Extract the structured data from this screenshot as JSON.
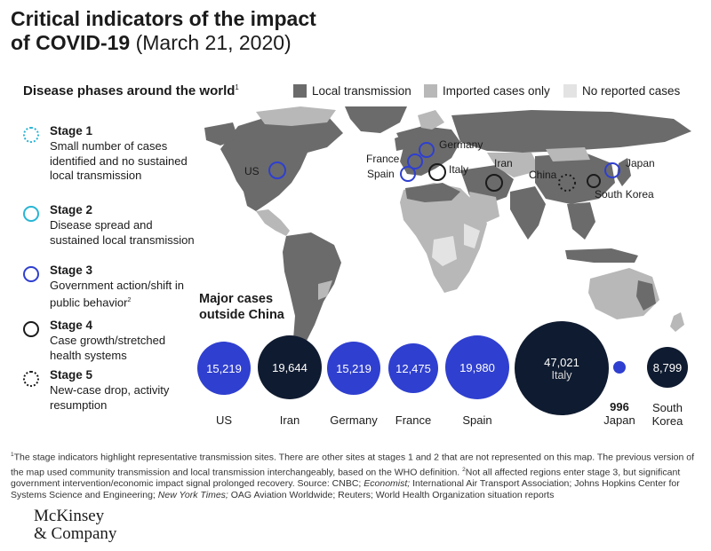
{
  "title": {
    "bold": "Critical indicators of the impact",
    "bold2": "of COVID-19",
    "date": "(March 21, 2020)"
  },
  "section_title": "Disease phases around the world",
  "section_title_sup": "1",
  "legend": [
    {
      "label": "Local transmission",
      "color": "#6b6b6b"
    },
    {
      "label": "Imported cases only",
      "color": "#b8b8b8"
    },
    {
      "label": "No reported cases",
      "color": "#e3e3e3"
    }
  ],
  "stages": [
    {
      "title": "Stage 1",
      "desc": "Small number of cases identified and no sustained local transmission",
      "sup": "",
      "color": "#29b5d4",
      "style": "dotted"
    },
    {
      "title": "Stage 2",
      "desc": "Disease spread and sustained local transmission",
      "sup": "",
      "color": "#29b5d4",
      "style": "solid"
    },
    {
      "title": "Stage 3",
      "desc": "Government action/shift in public behavior",
      "sup": "2",
      "color": "#2f3fcf",
      "style": "solid"
    },
    {
      "title": "Stage 4",
      "desc": "Case growth/stretched health systems",
      "sup": "",
      "color": "#1b1b1b",
      "style": "solid"
    },
    {
      "title": "Stage 5",
      "desc": "New-case drop, activity resumption",
      "sup": "",
      "color": "#1b1b1b",
      "style": "dotted"
    }
  ],
  "map_labels": {
    "us": "US",
    "france": "France",
    "germany": "Germany",
    "spain": "Spain",
    "italy": "Italy",
    "iran": "Iran",
    "china": "China",
    "japan": "Japan",
    "south_korea": "South Korea"
  },
  "major_title": "Major cases outside China",
  "chart_data": {
    "type": "bubble",
    "title": "Major cases outside China",
    "series": [
      {
        "country": "US",
        "value": 15219,
        "label": "15,219",
        "stage": 3
      },
      {
        "country": "Iran",
        "value": 19644,
        "label": "19,644",
        "stage": 4
      },
      {
        "country": "Germany",
        "value": 15219,
        "label": "15,219",
        "stage": 3
      },
      {
        "country": "France",
        "value": 12475,
        "label": "12,475",
        "stage": 3
      },
      {
        "country": "Spain",
        "value": 19980,
        "label": "19,980",
        "stage": 3
      },
      {
        "country": "Italy",
        "value": 47021,
        "label": "47,021",
        "stage": 4
      },
      {
        "country": "Japan",
        "value": 996,
        "label": "996",
        "stage": 3
      },
      {
        "country": "South Korea",
        "value": 8799,
        "label": "8,799",
        "stage": 4
      }
    ]
  },
  "bubble_labels": {
    "us": "US",
    "iran": "Iran",
    "germany": "Germany",
    "france": "France",
    "spain": "Spain",
    "italy": "Italy",
    "japan_value": "996",
    "japan": "Japan",
    "sk1": "South",
    "sk2": "Korea"
  },
  "colors": {
    "stage3": "#2f3fcf",
    "stage4": "#0f1b30",
    "map_dark": "#6b6b6b",
    "map_mid": "#b8b8b8",
    "map_light": "#e3e3e3"
  },
  "footnote": {
    "sup1": "1",
    "p1": "The stage indicators highlight representative transmission sites. There are other sites at stages 1 and 2 that are not represented on this map. The previous version of the map used community transmission and local transmission interchangeably, based on the WHO definition.",
    "sup2": "2",
    "p2": "Not all affected regions enter stage 3, but significant government intervention/economic impact signal prolonged recovery. Source: CNBC;",
    "i1": "Economist;",
    "p3": "International Air Transport Association; Johns Hopkins Center for Systems Science and Engineering;",
    "i2": "New York Times;",
    "p4": "OAG Aviation Worldwide; Reuters; World Health Organization situation reports"
  },
  "logo": {
    "line1": "McKinsey",
    "line2": "& Company"
  }
}
